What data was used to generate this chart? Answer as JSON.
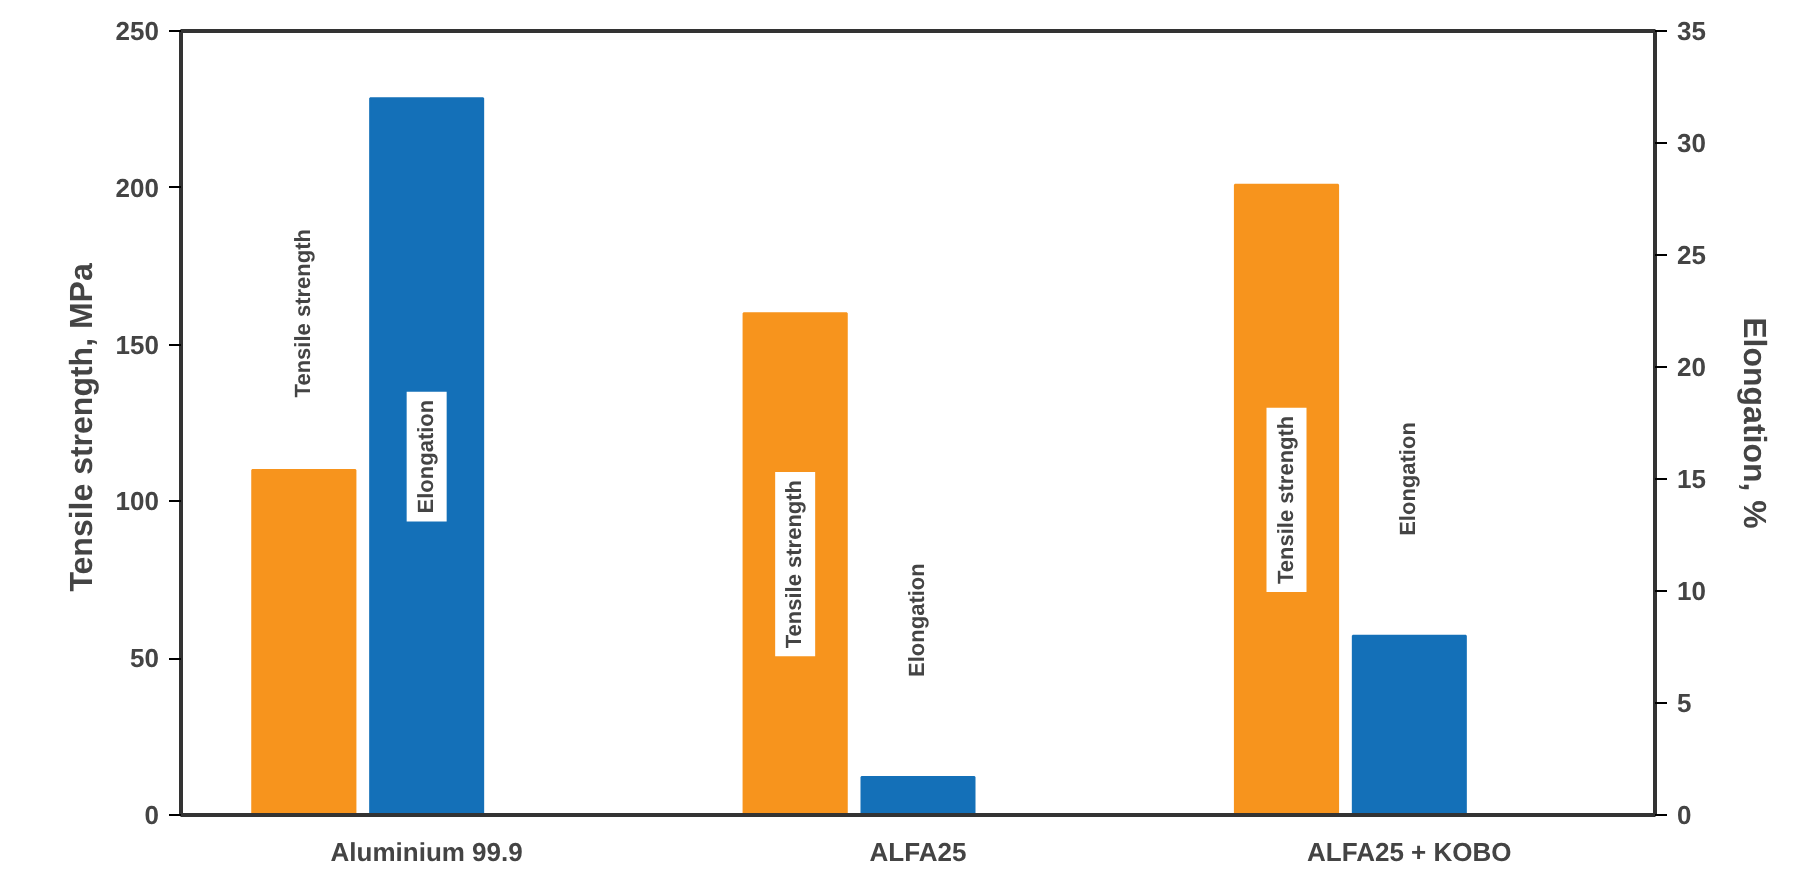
{
  "chart_data": {
    "type": "bar",
    "ylabel": "Tensile strength,  MPa",
    "y2label": "Elongation, %",
    "categories": [
      "Aluminium 99.9",
      "ALFA25",
      "ALFA25 + KOBO"
    ],
    "series": [
      {
        "color": "#f7941d",
        "values": [
          110,
          160,
          201
        ]
      },
      {
        "color": "#1470b8",
        "values": [
          32,
          1.7,
          8
        ],
        "axis": "y2"
      }
    ],
    "ylim": [
      0,
      250
    ],
    "yticks": [
      0,
      50,
      100,
      150,
      200,
      250
    ],
    "y2lim": [
      0,
      35
    ],
    "y2ticks": [
      0,
      5,
      10,
      15,
      20,
      25,
      30,
      35
    ],
    "annotations": [
      "Tensile strength",
      "Elongation",
      "Tensile strength",
      "Elongation",
      "Tensile strength",
      "Elongation"
    ],
    "grid": false
  }
}
